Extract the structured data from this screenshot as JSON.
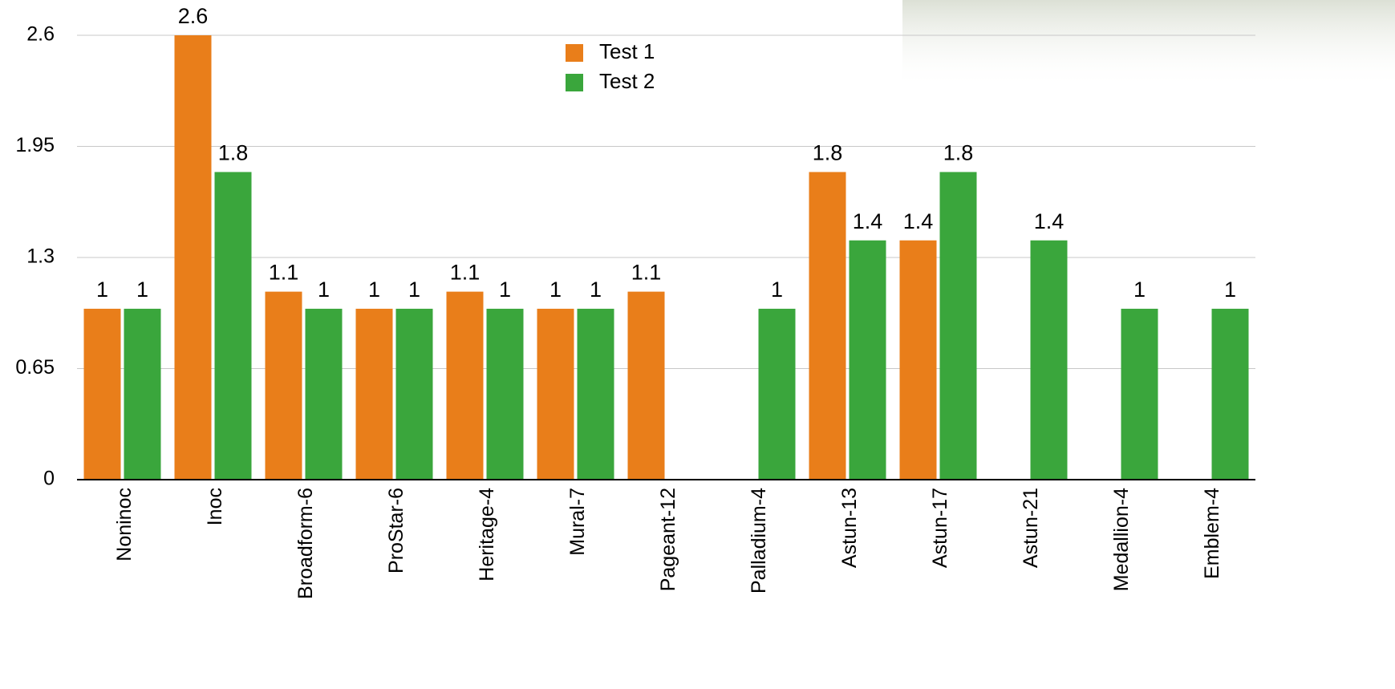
{
  "chart_data": {
    "type": "bar",
    "categories": [
      "Noninoc",
      "Inoc",
      "Broadform-6",
      "ProStar-6",
      "Heritage-4",
      "Mural-7",
      "Pageant-12",
      "Palladium-4",
      "Astun-13",
      "Astun-17",
      "Astun-21",
      "Medallion-4",
      "Emblem-4"
    ],
    "series": [
      {
        "name": "Test 1",
        "color": "#e97e1a",
        "values": [
          1,
          2.6,
          1.1,
          1,
          1.1,
          1,
          1.1,
          null,
          1.8,
          1.4,
          null,
          null,
          null
        ]
      },
      {
        "name": "Test 2",
        "color": "#3aa63c",
        "values": [
          1,
          1.8,
          1,
          1,
          1,
          1,
          null,
          1,
          1.4,
          1.8,
          1.4,
          1,
          1
        ]
      }
    ],
    "ylim": [
      0,
      2.6
    ],
    "yticks": [
      0,
      0.65,
      1.3,
      1.95,
      2.6
    ],
    "grid": true,
    "legend": "top"
  }
}
